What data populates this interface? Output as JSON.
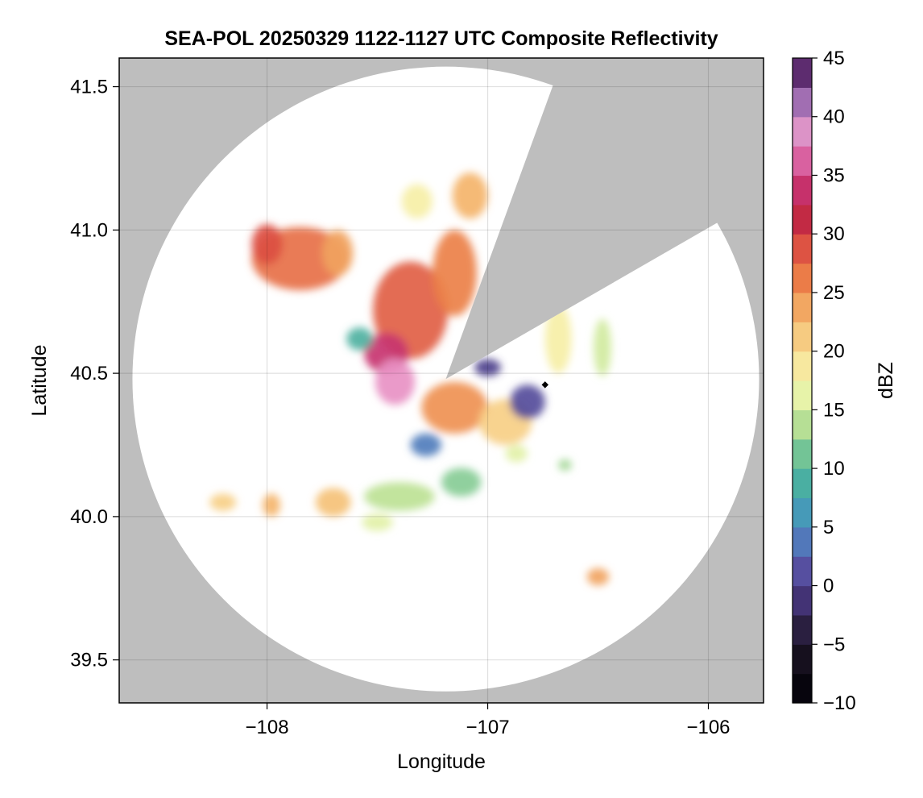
{
  "chart_data": {
    "type": "heatmap",
    "title": "SEA-POL 20250329 1122-1127 UTC Composite Reflectivity",
    "xlabel": "Longitude",
    "ylabel": "Latitude",
    "xlim": [
      -108.67,
      -105.75
    ],
    "ylim": [
      39.35,
      41.6
    ],
    "x_ticks": [
      -108,
      -107,
      -106
    ],
    "x_tick_labels": [
      "−108",
      "−107",
      "−106"
    ],
    "y_ticks": [
      39.5,
      40.0,
      40.5,
      41.0,
      41.5
    ],
    "y_tick_labels": [
      "39.5",
      "40.0",
      "40.5",
      "41.0",
      "41.5"
    ],
    "grid": true,
    "background_color": "#bebebe",
    "coverage_color": "#ffffff",
    "radar": {
      "center": [
        -107.19,
        40.48
      ],
      "radius_lon_deg": 1.42,
      "radius_lat_deg": 1.09,
      "blocked_sector_bearing_deg": [
        20,
        60
      ],
      "site_marker": [
        -106.74,
        40.46
      ]
    },
    "colorbar": {
      "label": "dBZ",
      "vmin": -10,
      "vmax": 45,
      "step": 2.5,
      "ticks": [
        -10,
        -5,
        0,
        5,
        10,
        15,
        20,
        25,
        30,
        35,
        40,
        45
      ],
      "tick_labels": [
        "−10",
        "−5",
        "0",
        "5",
        "10",
        "15",
        "20",
        "25",
        "30",
        "35",
        "40",
        "45"
      ],
      "colormap": [
        {
          "v": -10,
          "c": "#000004"
        },
        {
          "v": -5,
          "c": "#1d1526"
        },
        {
          "v": -1,
          "c": "#46357a"
        },
        {
          "v": 2,
          "c": "#5b58ac"
        },
        {
          "v": 5,
          "c": "#4b8fc4"
        },
        {
          "v": 8,
          "c": "#3fa9a6"
        },
        {
          "v": 11,
          "c": "#6cc196"
        },
        {
          "v": 14,
          "c": "#bde295"
        },
        {
          "v": 17,
          "c": "#f5f9b0"
        },
        {
          "v": 20,
          "c": "#f8dc92"
        },
        {
          "v": 23,
          "c": "#f4b46a"
        },
        {
          "v": 26,
          "c": "#ec8048"
        },
        {
          "v": 29,
          "c": "#dc4f42"
        },
        {
          "v": 32,
          "c": "#b91e45"
        },
        {
          "v": 35,
          "c": "#cf3f86"
        },
        {
          "v": 38,
          "c": "#e891c4"
        },
        {
          "v": 40,
          "c": "#c797cc"
        },
        {
          "v": 42,
          "c": "#8a55a2"
        },
        {
          "v": 45,
          "c": "#3d0f4b"
        }
      ]
    },
    "echo_cells": [
      {
        "lon": -107.85,
        "lat": 40.9,
        "rlon": 0.22,
        "rlat": 0.11,
        "dbz": 27
      },
      {
        "lon": -108.0,
        "lat": 40.95,
        "rlon": 0.07,
        "rlat": 0.07,
        "dbz": 29
      },
      {
        "lon": -107.68,
        "lat": 40.92,
        "rlon": 0.07,
        "rlat": 0.08,
        "dbz": 24
      },
      {
        "lon": -107.35,
        "lat": 40.72,
        "rlon": 0.17,
        "rlat": 0.17,
        "dbz": 28
      },
      {
        "lon": -107.15,
        "lat": 40.85,
        "rlon": 0.1,
        "rlat": 0.15,
        "dbz": 26
      },
      {
        "lon": -107.08,
        "lat": 41.12,
        "rlon": 0.08,
        "rlat": 0.08,
        "dbz": 23
      },
      {
        "lon": -107.32,
        "lat": 41.1,
        "rlon": 0.07,
        "rlat": 0.06,
        "dbz": 18
      },
      {
        "lon": -107.46,
        "lat": 40.57,
        "rlon": 0.1,
        "rlat": 0.07,
        "dbz": 34
      },
      {
        "lon": -107.42,
        "lat": 40.47,
        "rlon": 0.09,
        "rlat": 0.08,
        "dbz": 38
      },
      {
        "lon": -107.15,
        "lat": 40.38,
        "rlon": 0.15,
        "rlat": 0.09,
        "dbz": 25
      },
      {
        "lon": -106.92,
        "lat": 40.33,
        "rlon": 0.12,
        "rlat": 0.08,
        "dbz": 21
      },
      {
        "lon": -107.58,
        "lat": 40.62,
        "rlon": 0.06,
        "rlat": 0.04,
        "dbz": 9
      },
      {
        "lon": -106.82,
        "lat": 40.4,
        "rlon": 0.08,
        "rlat": 0.06,
        "dbz": 1
      },
      {
        "lon": -107.0,
        "lat": 40.52,
        "rlon": 0.06,
        "rlat": 0.03,
        "dbz": 0
      },
      {
        "lon": -107.28,
        "lat": 40.25,
        "rlon": 0.07,
        "rlat": 0.04,
        "dbz": 4
      },
      {
        "lon": -106.68,
        "lat": 40.62,
        "rlon": 0.06,
        "rlat": 0.12,
        "dbz": 18
      },
      {
        "lon": -106.48,
        "lat": 40.59,
        "rlon": 0.04,
        "rlat": 0.1,
        "dbz": 15
      },
      {
        "lon": -107.4,
        "lat": 40.07,
        "rlon": 0.16,
        "rlat": 0.05,
        "dbz": 14
      },
      {
        "lon": -107.12,
        "lat": 40.12,
        "rlon": 0.09,
        "rlat": 0.05,
        "dbz": 12
      },
      {
        "lon": -107.7,
        "lat": 40.05,
        "rlon": 0.08,
        "rlat": 0.05,
        "dbz": 22
      },
      {
        "lon": -107.98,
        "lat": 40.04,
        "rlon": 0.04,
        "rlat": 0.04,
        "dbz": 23
      },
      {
        "lon": -108.2,
        "lat": 40.05,
        "rlon": 0.06,
        "rlat": 0.03,
        "dbz": 21
      },
      {
        "lon": -107.5,
        "lat": 39.98,
        "rlon": 0.07,
        "rlat": 0.03,
        "dbz": 16
      },
      {
        "lon": -106.5,
        "lat": 39.79,
        "rlon": 0.05,
        "rlat": 0.03,
        "dbz": 24
      },
      {
        "lon": -106.87,
        "lat": 40.22,
        "rlon": 0.05,
        "rlat": 0.03,
        "dbz": 16
      },
      {
        "lon": -106.65,
        "lat": 40.18,
        "rlon": 0.03,
        "rlat": 0.02,
        "dbz": 13
      }
    ]
  }
}
